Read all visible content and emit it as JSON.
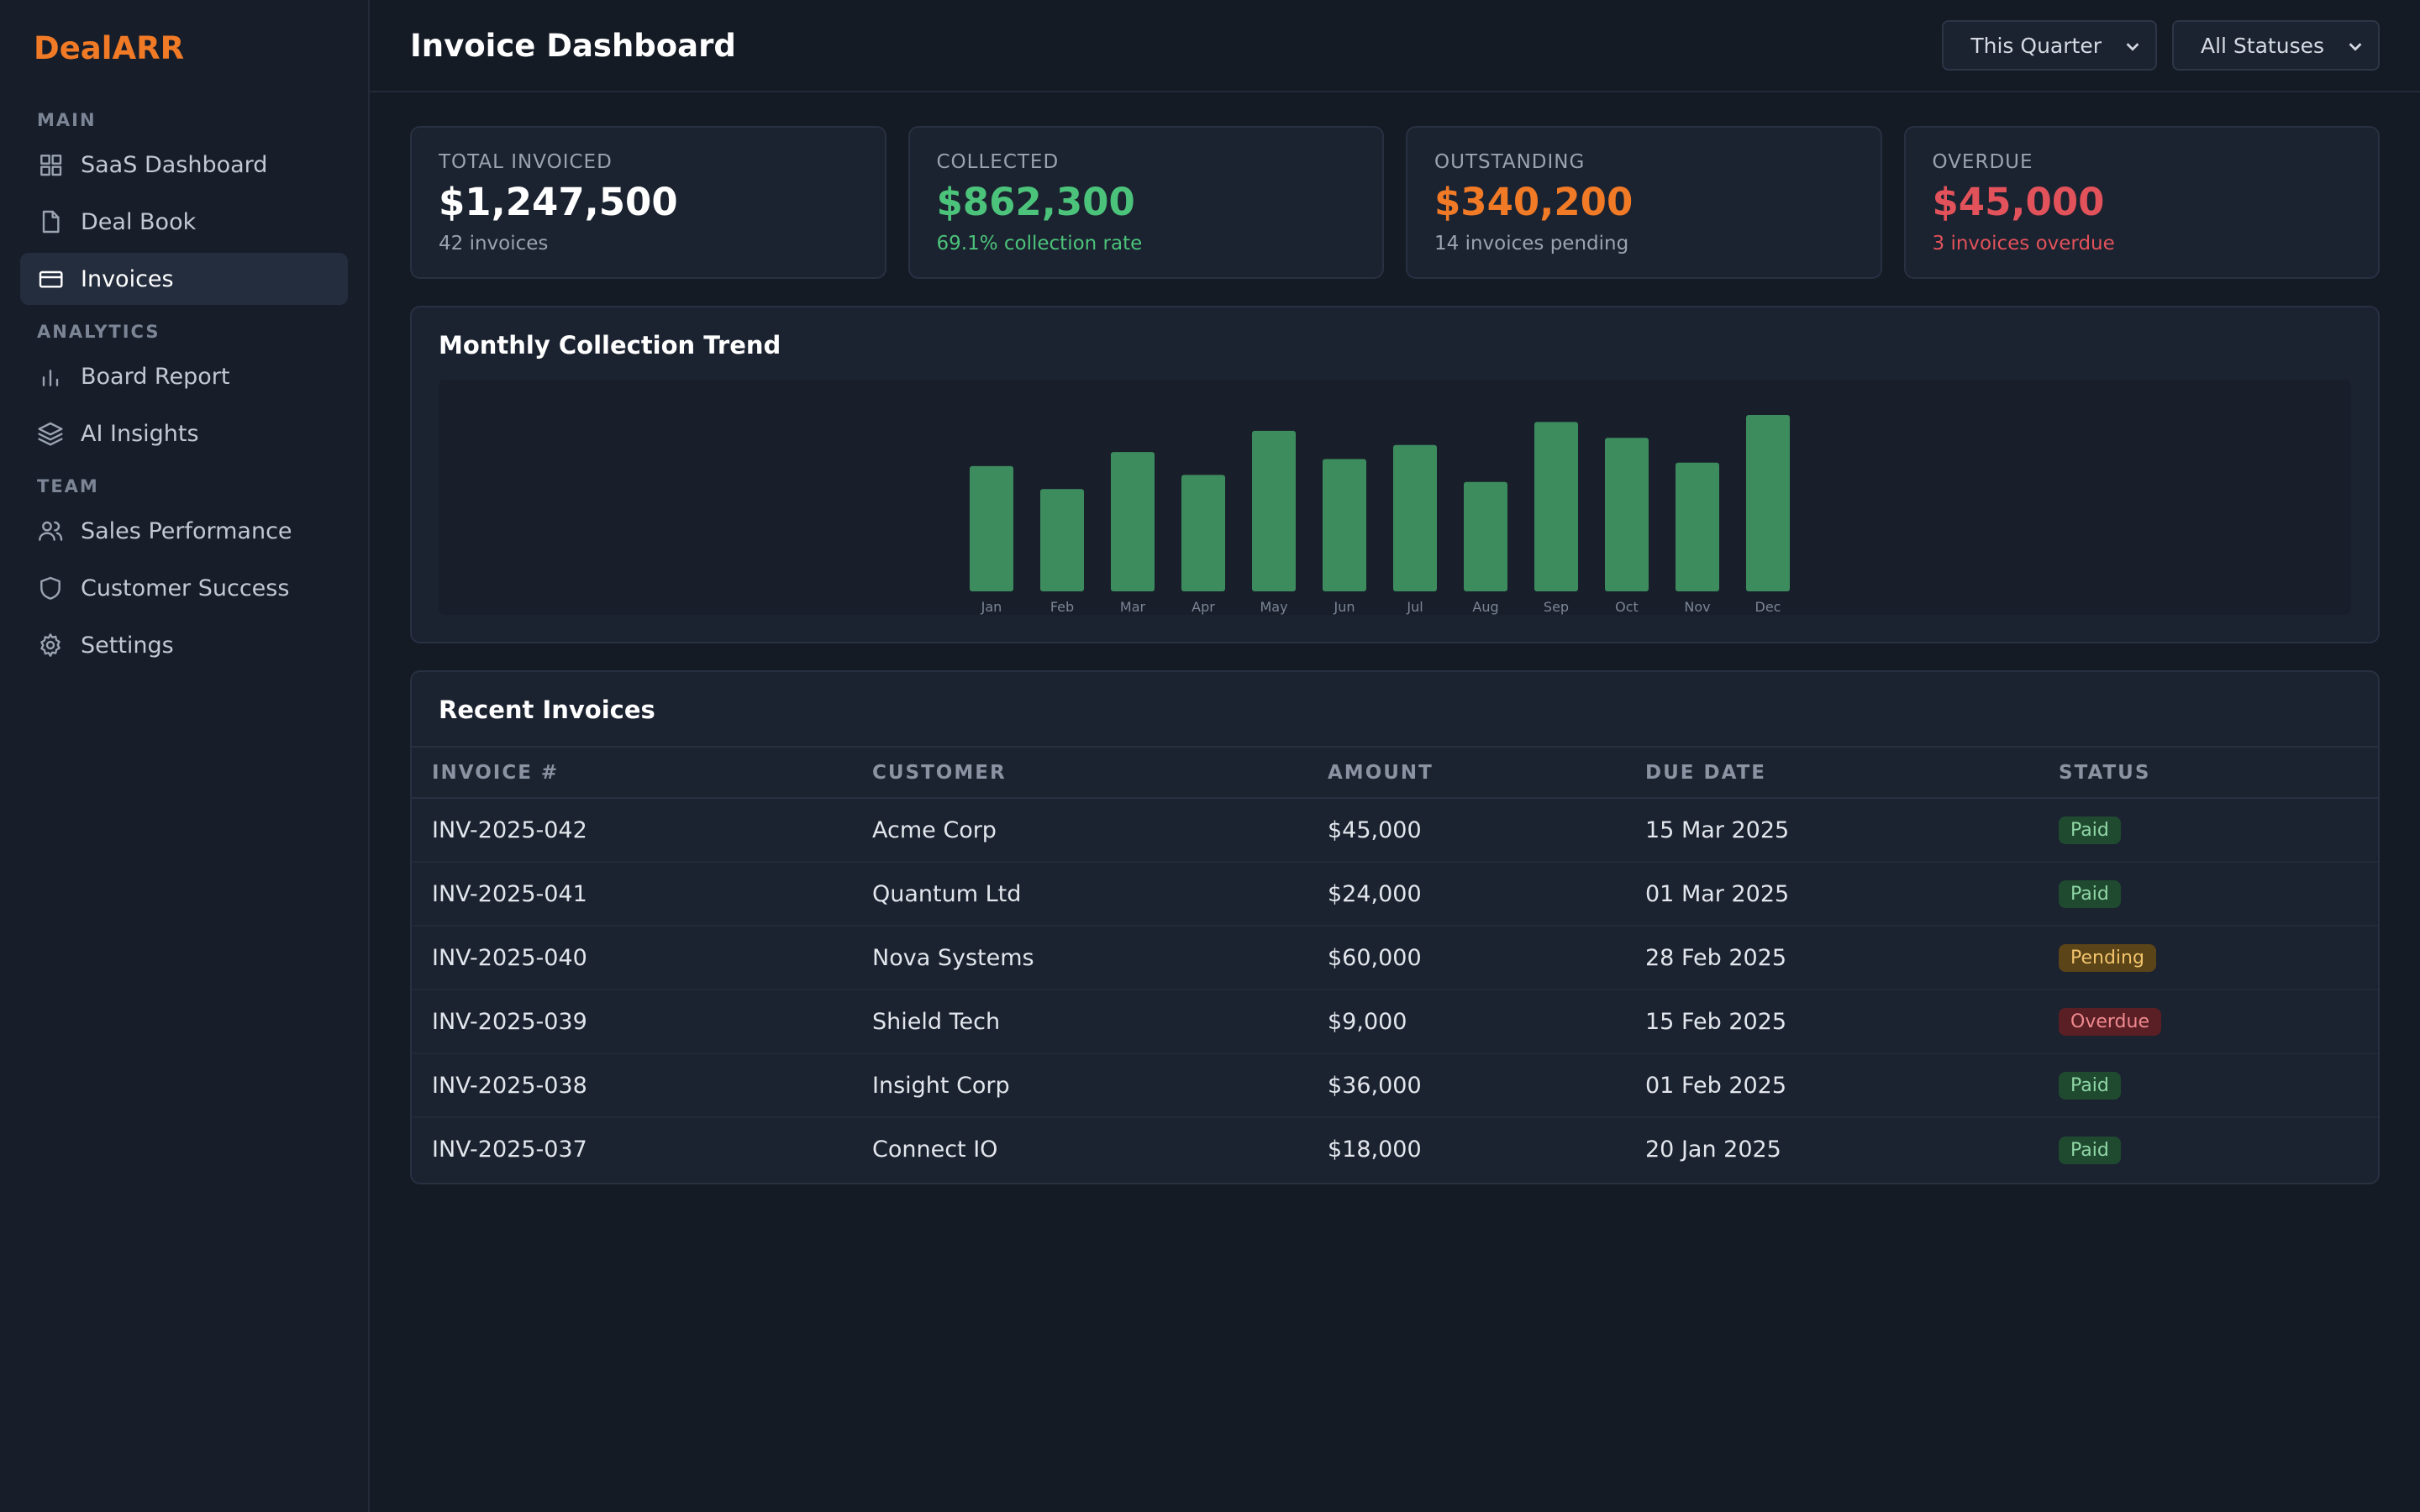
{
  "brand": "DealARR",
  "sidebar": {
    "sections": [
      {
        "label": "MAIN",
        "items": [
          {
            "label": "SaaS Dashboard",
            "icon": "grid-icon"
          },
          {
            "label": "Deal Book",
            "icon": "file-icon"
          },
          {
            "label": "Invoices",
            "icon": "credit-card-icon",
            "active": true
          }
        ]
      },
      {
        "label": "ANALYTICS",
        "items": [
          {
            "label": "Board Report",
            "icon": "bar-chart-icon"
          },
          {
            "label": "AI Insights",
            "icon": "layers-icon"
          }
        ]
      },
      {
        "label": "TEAM",
        "items": [
          {
            "label": "Sales Performance",
            "icon": "users-icon"
          },
          {
            "label": "Customer Success",
            "icon": "shield-icon"
          },
          {
            "label": "Settings",
            "icon": "gear-icon"
          }
        ]
      }
    ]
  },
  "header": {
    "title": "Invoice Dashboard",
    "period_filter": "This Quarter",
    "status_filter": "All Statuses"
  },
  "cards": [
    {
      "label": "TOTAL INVOICED",
      "value": "$1,247,500",
      "sub": "42 invoices",
      "value_color": "#ffffff",
      "sub_color": "#9aa3b0"
    },
    {
      "label": "COLLECTED",
      "value": "$862,300",
      "sub": "69.1% collection rate",
      "value_color": "#4cc37a",
      "sub_color": "#4cc37a"
    },
    {
      "label": "OUTSTANDING",
      "value": "$340,200",
      "sub": "14 invoices pending",
      "value_color": "#f07a26",
      "sub_color": "#9aa3b0"
    },
    {
      "label": "OVERDUE",
      "value": "$45,000",
      "sub": "3 invoices overdue",
      "value_color": "#e2525a",
      "sub_color": "#e2525a"
    }
  ],
  "chart": {
    "title": "Monthly Collection Trend",
    "bar_color": "#3d8c5e",
    "label_color": "#7b8595"
  },
  "chart_data": {
    "type": "bar",
    "categories": [
      "Jan",
      "Feb",
      "Mar",
      "Apr",
      "May",
      "Jun",
      "Jul",
      "Aug",
      "Sep",
      "Oct",
      "Nov",
      "Dec"
    ],
    "values": [
      71,
      58,
      79,
      66,
      91,
      75,
      83,
      62,
      96,
      87,
      73,
      100
    ],
    "ylim": [
      0,
      100
    ],
    "grid": false,
    "xlabel": "",
    "ylabel": ""
  },
  "table": {
    "title": "Recent Invoices",
    "columns": [
      "INVOICE #",
      "CUSTOMER",
      "AMOUNT",
      "DUE DATE",
      "STATUS"
    ],
    "rows": [
      {
        "invoice": "INV-2025-042",
        "customer": "Acme Corp",
        "amount": "$45,000",
        "due": "15 Mar 2025",
        "status": "Paid"
      },
      {
        "invoice": "INV-2025-041",
        "customer": "Quantum Ltd",
        "amount": "$24,000",
        "due": "01 Mar 2025",
        "status": "Paid"
      },
      {
        "invoice": "INV-2025-040",
        "customer": "Nova Systems",
        "amount": "$60,000",
        "due": "28 Feb 2025",
        "status": "Pending"
      },
      {
        "invoice": "INV-2025-039",
        "customer": "Shield Tech",
        "amount": "$9,000",
        "due": "15 Feb 2025",
        "status": "Overdue"
      },
      {
        "invoice": "INV-2025-038",
        "customer": "Insight Corp",
        "amount": "$36,000",
        "due": "01 Feb 2025",
        "status": "Paid"
      },
      {
        "invoice": "INV-2025-037",
        "customer": "Connect IO",
        "amount": "$18,000",
        "due": "20 Jan 2025",
        "status": "Paid"
      }
    ],
    "status_colors": {
      "Paid": {
        "bg": "#1f4a30",
        "fg": "#8fd6a6"
      },
      "Pending": {
        "bg": "#5a4418",
        "fg": "#f2c36b"
      },
      "Overdue": {
        "bg": "#5a1f24",
        "fg": "#ee8a8f"
      }
    }
  }
}
